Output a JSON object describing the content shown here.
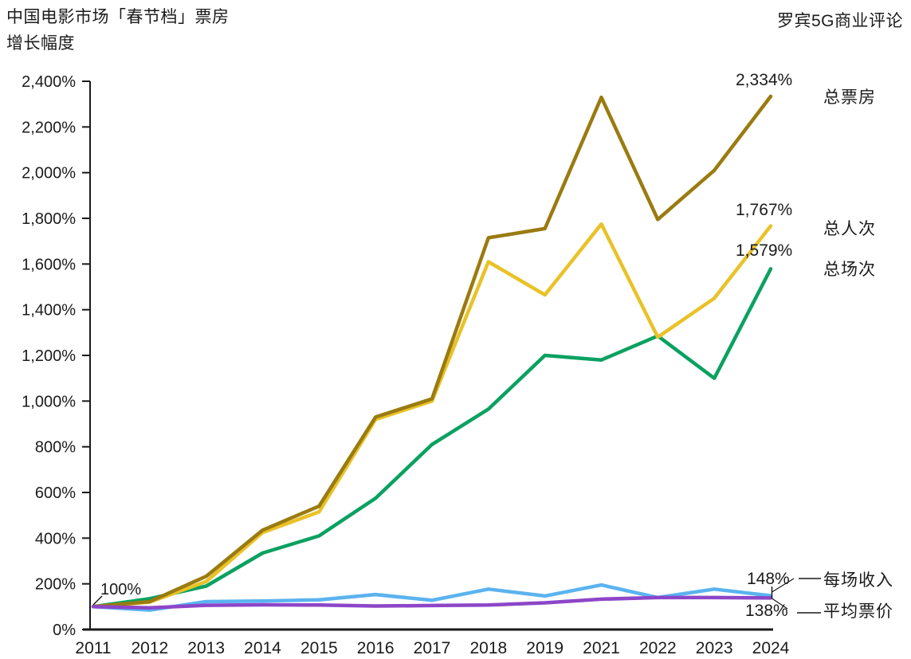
{
  "header": {
    "title_line1": "中国电影市场「春节档」票房",
    "title_line2": "增长幅度",
    "source": "罗宾5G商业评论"
  },
  "chart_data": {
    "type": "line",
    "title": "中国电影市场「春节档」票房增长幅度",
    "x_labels": [
      "2011",
      "2012",
      "2013",
      "2014",
      "2015",
      "2016",
      "2017",
      "2018",
      "2019",
      "2021",
      "2022",
      "2023",
      "2024"
    ],
    "y_ticks": [
      "0%",
      "200%",
      "400%",
      "600%",
      "800%",
      "1,000%",
      "1,200%",
      "1,400%",
      "1,600%",
      "1,800%",
      "2,000%",
      "2,200%",
      "2,400%"
    ],
    "ylim": [
      0,
      2400
    ],
    "grid": false,
    "legend_position": "right-edge-labels",
    "start_annotation": "100%",
    "series": [
      {
        "name": "总场次",
        "color": "#0ba161",
        "end_label": "1,579%",
        "values": [
          100,
          135,
          190,
          335,
          410,
          575,
          810,
          965,
          1200,
          1180,
          1285,
          1100,
          1579
        ]
      },
      {
        "name": "总人次",
        "color": "#e9c227",
        "end_label": "1,767%",
        "values": [
          100,
          120,
          210,
          425,
          515,
          920,
          1000,
          1610,
          1465,
          1775,
          1280,
          1450,
          1767
        ]
      },
      {
        "name": "总票房",
        "color": "#9a7b10",
        "end_label": "2,334%",
        "values": [
          100,
          122,
          233,
          435,
          540,
          930,
          1010,
          1715,
          1755,
          2330,
          1795,
          2010,
          2334
        ]
      },
      {
        "name": "每场收入",
        "color": "#5bb3f0",
        "end_label": "148%",
        "values": [
          100,
          85,
          122,
          125,
          130,
          153,
          128,
          177,
          147,
          195,
          140,
          177,
          148
        ]
      },
      {
        "name": "平均票价",
        "color": "#8d46c8",
        "end_label": "138%",
        "values": [
          100,
          95,
          106,
          108,
          107,
          103,
          105,
          107,
          117,
          133,
          140,
          140,
          138
        ]
      }
    ]
  }
}
